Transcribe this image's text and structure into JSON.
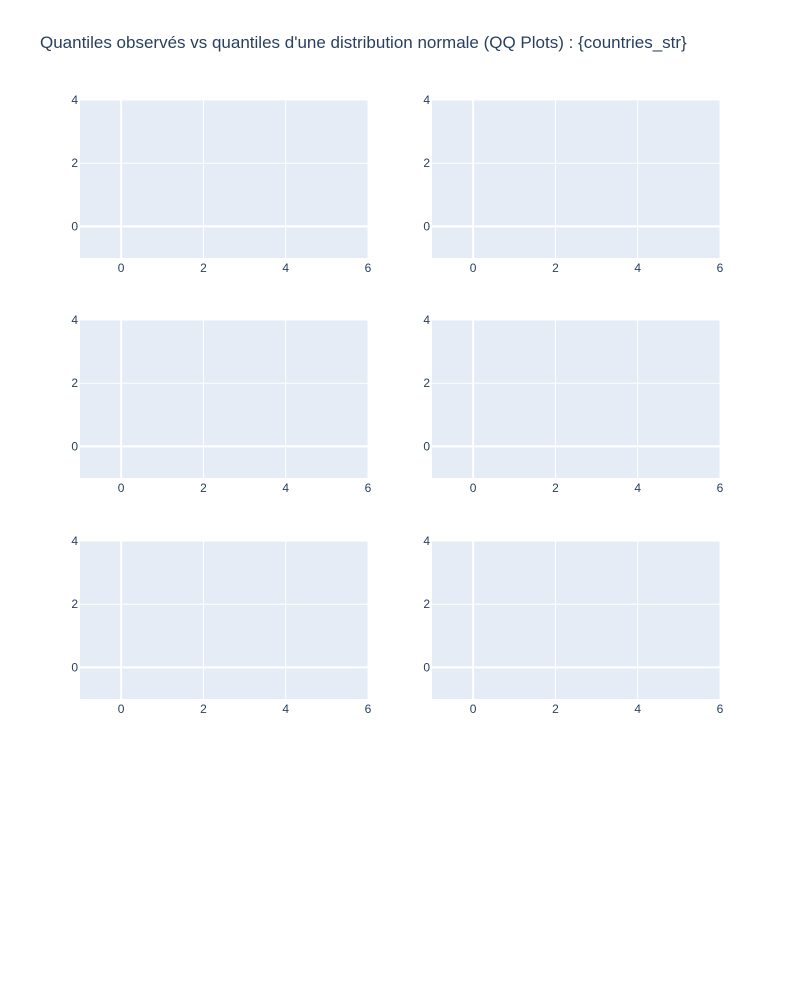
{
  "chart_data": {
    "type": "scatter",
    "title": "Quantiles observés vs quantiles d'une distribution normale (QQ Plots) : {countries_str}",
    "grid": true,
    "colors": {
      "plot_background": "#e5ecf6",
      "gridline": "#ffffff",
      "text": "#2a3f5f"
    },
    "subplots": [
      {
        "series": [],
        "xlim": [
          -1,
          6
        ],
        "ylim": [
          -1,
          4
        ],
        "xticks": [
          0,
          2,
          4,
          6
        ],
        "yticks": [
          0,
          2,
          4
        ]
      },
      {
        "series": [],
        "xlim": [
          -1,
          6
        ],
        "ylim": [
          -1,
          4
        ],
        "xticks": [
          0,
          2,
          4,
          6
        ],
        "yticks": [
          0,
          2,
          4
        ]
      },
      {
        "series": [],
        "xlim": [
          -1,
          6
        ],
        "ylim": [
          -1,
          4
        ],
        "xticks": [
          0,
          2,
          4,
          6
        ],
        "yticks": [
          0,
          2,
          4
        ]
      },
      {
        "series": [],
        "xlim": [
          -1,
          6
        ],
        "ylim": [
          -1,
          4
        ],
        "xticks": [
          0,
          2,
          4,
          6
        ],
        "yticks": [
          0,
          2,
          4
        ]
      },
      {
        "series": [],
        "xlim": [
          -1,
          6
        ],
        "ylim": [
          -1,
          4
        ],
        "xticks": [
          0,
          2,
          4,
          6
        ],
        "yticks": [
          0,
          2,
          4
        ]
      },
      {
        "series": [],
        "xlim": [
          -1,
          6
        ],
        "ylim": [
          -1,
          4
        ],
        "xticks": [
          0,
          2,
          4,
          6
        ],
        "yticks": [
          0,
          2,
          4
        ]
      }
    ]
  }
}
